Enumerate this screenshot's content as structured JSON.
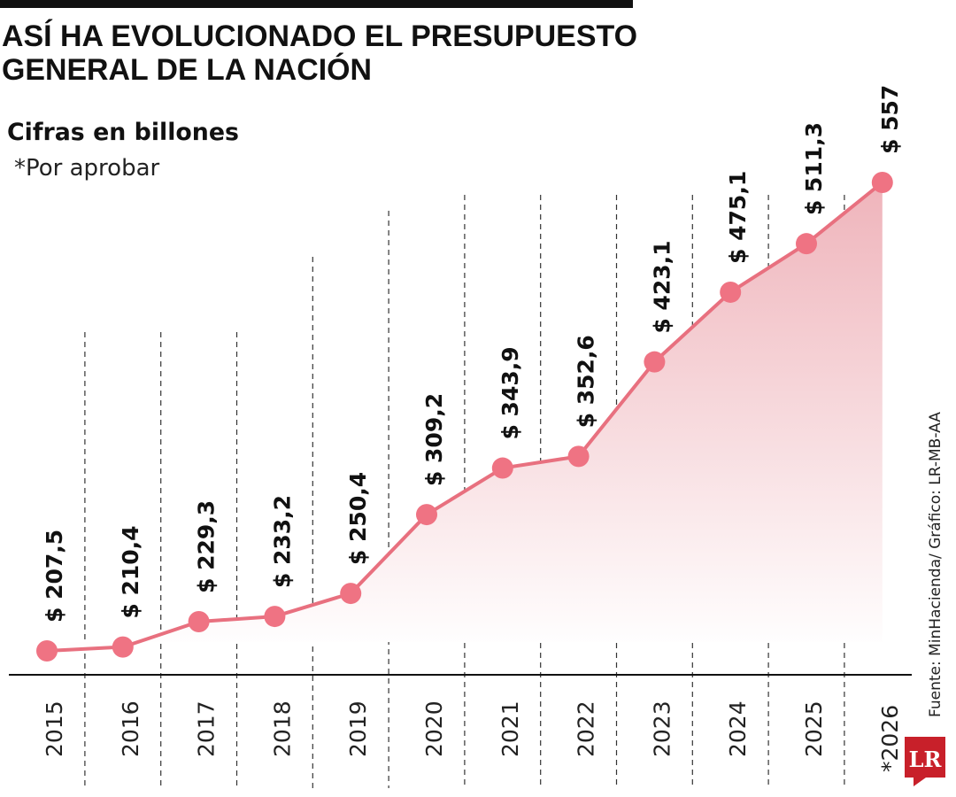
{
  "title_lines": [
    "ASÍ HA EVOLUCIONADO EL PRESUPUESTO",
    "GENERAL DE LA NACIÓN"
  ],
  "subtitle": "Cifras en billones",
  "note": "*Por aprobar",
  "source": "Fuente: MinHacienda/ Gráfico: LR-MB-AA",
  "logo_text": "LR",
  "colors": {
    "line": "#e8707f",
    "point": "#ef7383",
    "fill_top": "#efb4bb",
    "logo": "#c8202a"
  },
  "chart_data": {
    "type": "line",
    "title": "ASÍ HA EVOLUCIONADO EL PRESUPUESTO GENERAL DE LA NACIÓN",
    "subtitle": "Cifras en billones",
    "categories": [
      "2015",
      "2016",
      "2017",
      "2018",
      "2019",
      "2020",
      "2021",
      "2022",
      "2023",
      "2024",
      "2025",
      "*2026"
    ],
    "values": [
      207.5,
      210.4,
      229.3,
      233.2,
      250.4,
      309.2,
      343.9,
      352.6,
      423.1,
      475.1,
      511.3,
      557
    ],
    "data_labels": [
      "$ 207,5",
      "$ 210,4",
      "$ 229,3",
      "$ 233,2",
      "$ 250,4",
      "$ 309,2",
      "$ 343,9",
      "$ 352,6",
      "$ 423,1",
      "$ 475,1",
      "$ 511,3",
      "$ 557"
    ],
    "area_fill": true,
    "grid": "vertical dashed separators",
    "yaxis_visible": false
  }
}
